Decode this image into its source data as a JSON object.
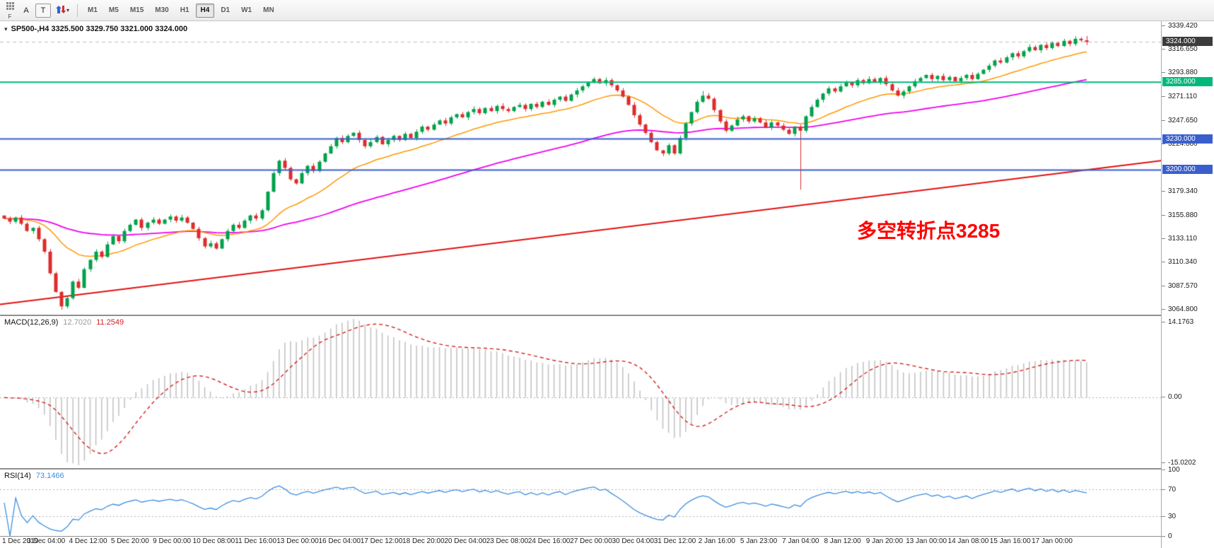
{
  "toolbar": {
    "dock_label": "F",
    "a_button": "A",
    "t_button": "T",
    "timeframes": [
      {
        "label": "M1",
        "active": false
      },
      {
        "label": "M5",
        "active": false
      },
      {
        "label": "M15",
        "active": false
      },
      {
        "label": "M30",
        "active": false
      },
      {
        "label": "H1",
        "active": false
      },
      {
        "label": "H4",
        "active": true
      },
      {
        "label": "D1",
        "active": false
      },
      {
        "label": "W1",
        "active": false
      },
      {
        "label": "MN",
        "active": false
      }
    ]
  },
  "chart_ui": {
    "collapse_arrow": "▾"
  },
  "chart_data": {
    "type": "candlestick",
    "symbol": "SP500-",
    "timeframe": "H4",
    "title": "SP500-,H4 3325.500 3329.750 3321.000 3324.000",
    "ohlc": {
      "open": 3325.5,
      "high": 3329.75,
      "low": 3321.0,
      "close": 3324.0
    },
    "current_price_label": "3324.000",
    "annotation": {
      "text": "多空转折点3285",
      "color": "#FF0000"
    },
    "up_color": "#00A14B",
    "down_color": "#DD2C2C",
    "price_range": {
      "min": 3060,
      "max": 3344
    },
    "y_ticks": [
      "3339.420",
      "3316.650",
      "3293.880",
      "3271.110",
      "3247.650",
      "3224.880",
      "3179.340",
      "3155.880",
      "3133.110",
      "3110.340",
      "3087.570",
      "3064.800"
    ],
    "hlines": [
      {
        "price": 3285.0,
        "label": "3285.000",
        "color": "#00B87C"
      },
      {
        "price": 3230.0,
        "label": "3230.000",
        "color": "#3A5FCD"
      },
      {
        "price": 3200.0,
        "label": "3200.000",
        "color": "#3A5FCD"
      }
    ],
    "x_labels": [
      "1 Dec 2019",
      "3 Dec 04:00",
      "4 Dec 12:00",
      "5 Dec 20:00",
      "9 Dec 00:00",
      "10 Dec 08:00",
      "11 Dec 16:00",
      "13 Dec 00:00",
      "16 Dec 04:00",
      "17 Dec 12:00",
      "18 Dec 20:00",
      "20 Dec 04:00",
      "23 Dec 08:00",
      "24 Dec 16:00",
      "27 Dec 00:00",
      "30 Dec 04:00",
      "31 Dec 12:00",
      "2 Jan 16:00",
      "5 Jan 23:00",
      "7 Jan 04:00",
      "8 Jan 12:00",
      "9 Jan 20:00",
      "13 Jan 00:00",
      "14 Jan 08:00",
      "15 Jan 16:00",
      "17 Jan 00:00"
    ],
    "closes": [
      3153,
      3150,
      3154,
      3148,
      3141,
      3144,
      3133,
      3121,
      3100,
      3082,
      3068,
      3076,
      3092,
      3086,
      3104,
      3113,
      3121,
      3116,
      3128,
      3136,
      3131,
      3141,
      3147,
      3152,
      3144,
      3149,
      3152,
      3148,
      3152,
      3155,
      3151,
      3154,
      3149,
      3143,
      3134,
      3126,
      3129,
      3124,
      3133,
      3141,
      3147,
      3144,
      3151,
      3156,
      3153,
      3161,
      3179,
      3197,
      3209,
      3202,
      3191,
      3187,
      3197,
      3204,
      3199,
      3208,
      3216,
      3223,
      3231,
      3227,
      3233,
      3236,
      3229,
      3223,
      3227,
      3232,
      3225,
      3229,
      3233,
      3229,
      3235,
      3231,
      3237,
      3242,
      3239,
      3244,
      3248,
      3245,
      3251,
      3254,
      3251,
      3256,
      3259,
      3255,
      3260,
      3257,
      3262,
      3259,
      3257,
      3261,
      3263,
      3259,
      3264,
      3261,
      3266,
      3263,
      3268,
      3271,
      3267,
      3273,
      3277,
      3281,
      3285,
      3288,
      3284,
      3287,
      3282,
      3277,
      3271,
      3263,
      3253,
      3244,
      3236,
      3227,
      3219,
      3216,
      3224,
      3216,
      3231,
      3245,
      3256,
      3266,
      3272,
      3269,
      3258,
      3247,
      3238,
      3243,
      3249,
      3252,
      3247,
      3250,
      3246,
      3241,
      3246,
      3243,
      3239,
      3235,
      3242,
      3238,
      3252,
      3261,
      3268,
      3274,
      3279,
      3276,
      3281,
      3285,
      3282,
      3287,
      3284,
      3288,
      3285,
      3289,
      3283,
      3277,
      3272,
      3276,
      3281,
      3286,
      3289,
      3292,
      3288,
      3291,
      3287,
      3290,
      3286,
      3289,
      3292,
      3288,
      3293,
      3297,
      3301,
      3306,
      3304,
      3309,
      3313,
      3310,
      3315,
      3319,
      3316,
      3321,
      3318,
      3323,
      3320,
      3325,
      3322,
      3327,
      3325.5,
      3324
    ],
    "wick_overrides": {
      "0": {
        "open": 3156
      },
      "10": {
        "low": 3064.8
      },
      "103": {
        "high": 3289.8
      },
      "115": {
        "low": 3213.5
      },
      "122": {
        "high": 3276.5
      },
      "139": {
        "low": 3181
      },
      "189": {
        "high": 3329.75,
        "low": 3321
      }
    },
    "moving_averages": [
      {
        "name": "slow-trend",
        "type": "linear",
        "start": 3070,
        "end": 3209,
        "color": "#E01010",
        "width": 2
      },
      {
        "name": "medium",
        "period": 70,
        "color": "#F000F0",
        "width": 1.8
      },
      {
        "name": "fast",
        "period": 20,
        "color": "#FF9800",
        "width": 1.5
      }
    ],
    "macd": {
      "label": "MACD(12,26,9)",
      "fast": 12,
      "slow": 26,
      "signal": 9,
      "value_main": "12.7020",
      "value_signal": "11.2549",
      "value_main_color": "#9a9a9a",
      "axis_max": "14.1763",
      "axis_zero": "0.00",
      "axis_min": "-15.0202",
      "hist_color": "#c4c4c4",
      "signal_color": "#D32020"
    },
    "rsi": {
      "label": "RSI(14)",
      "period": 14,
      "value": "73.1466",
      "levels": [
        100,
        70,
        30,
        0
      ],
      "color": "#3E8EDE"
    }
  }
}
